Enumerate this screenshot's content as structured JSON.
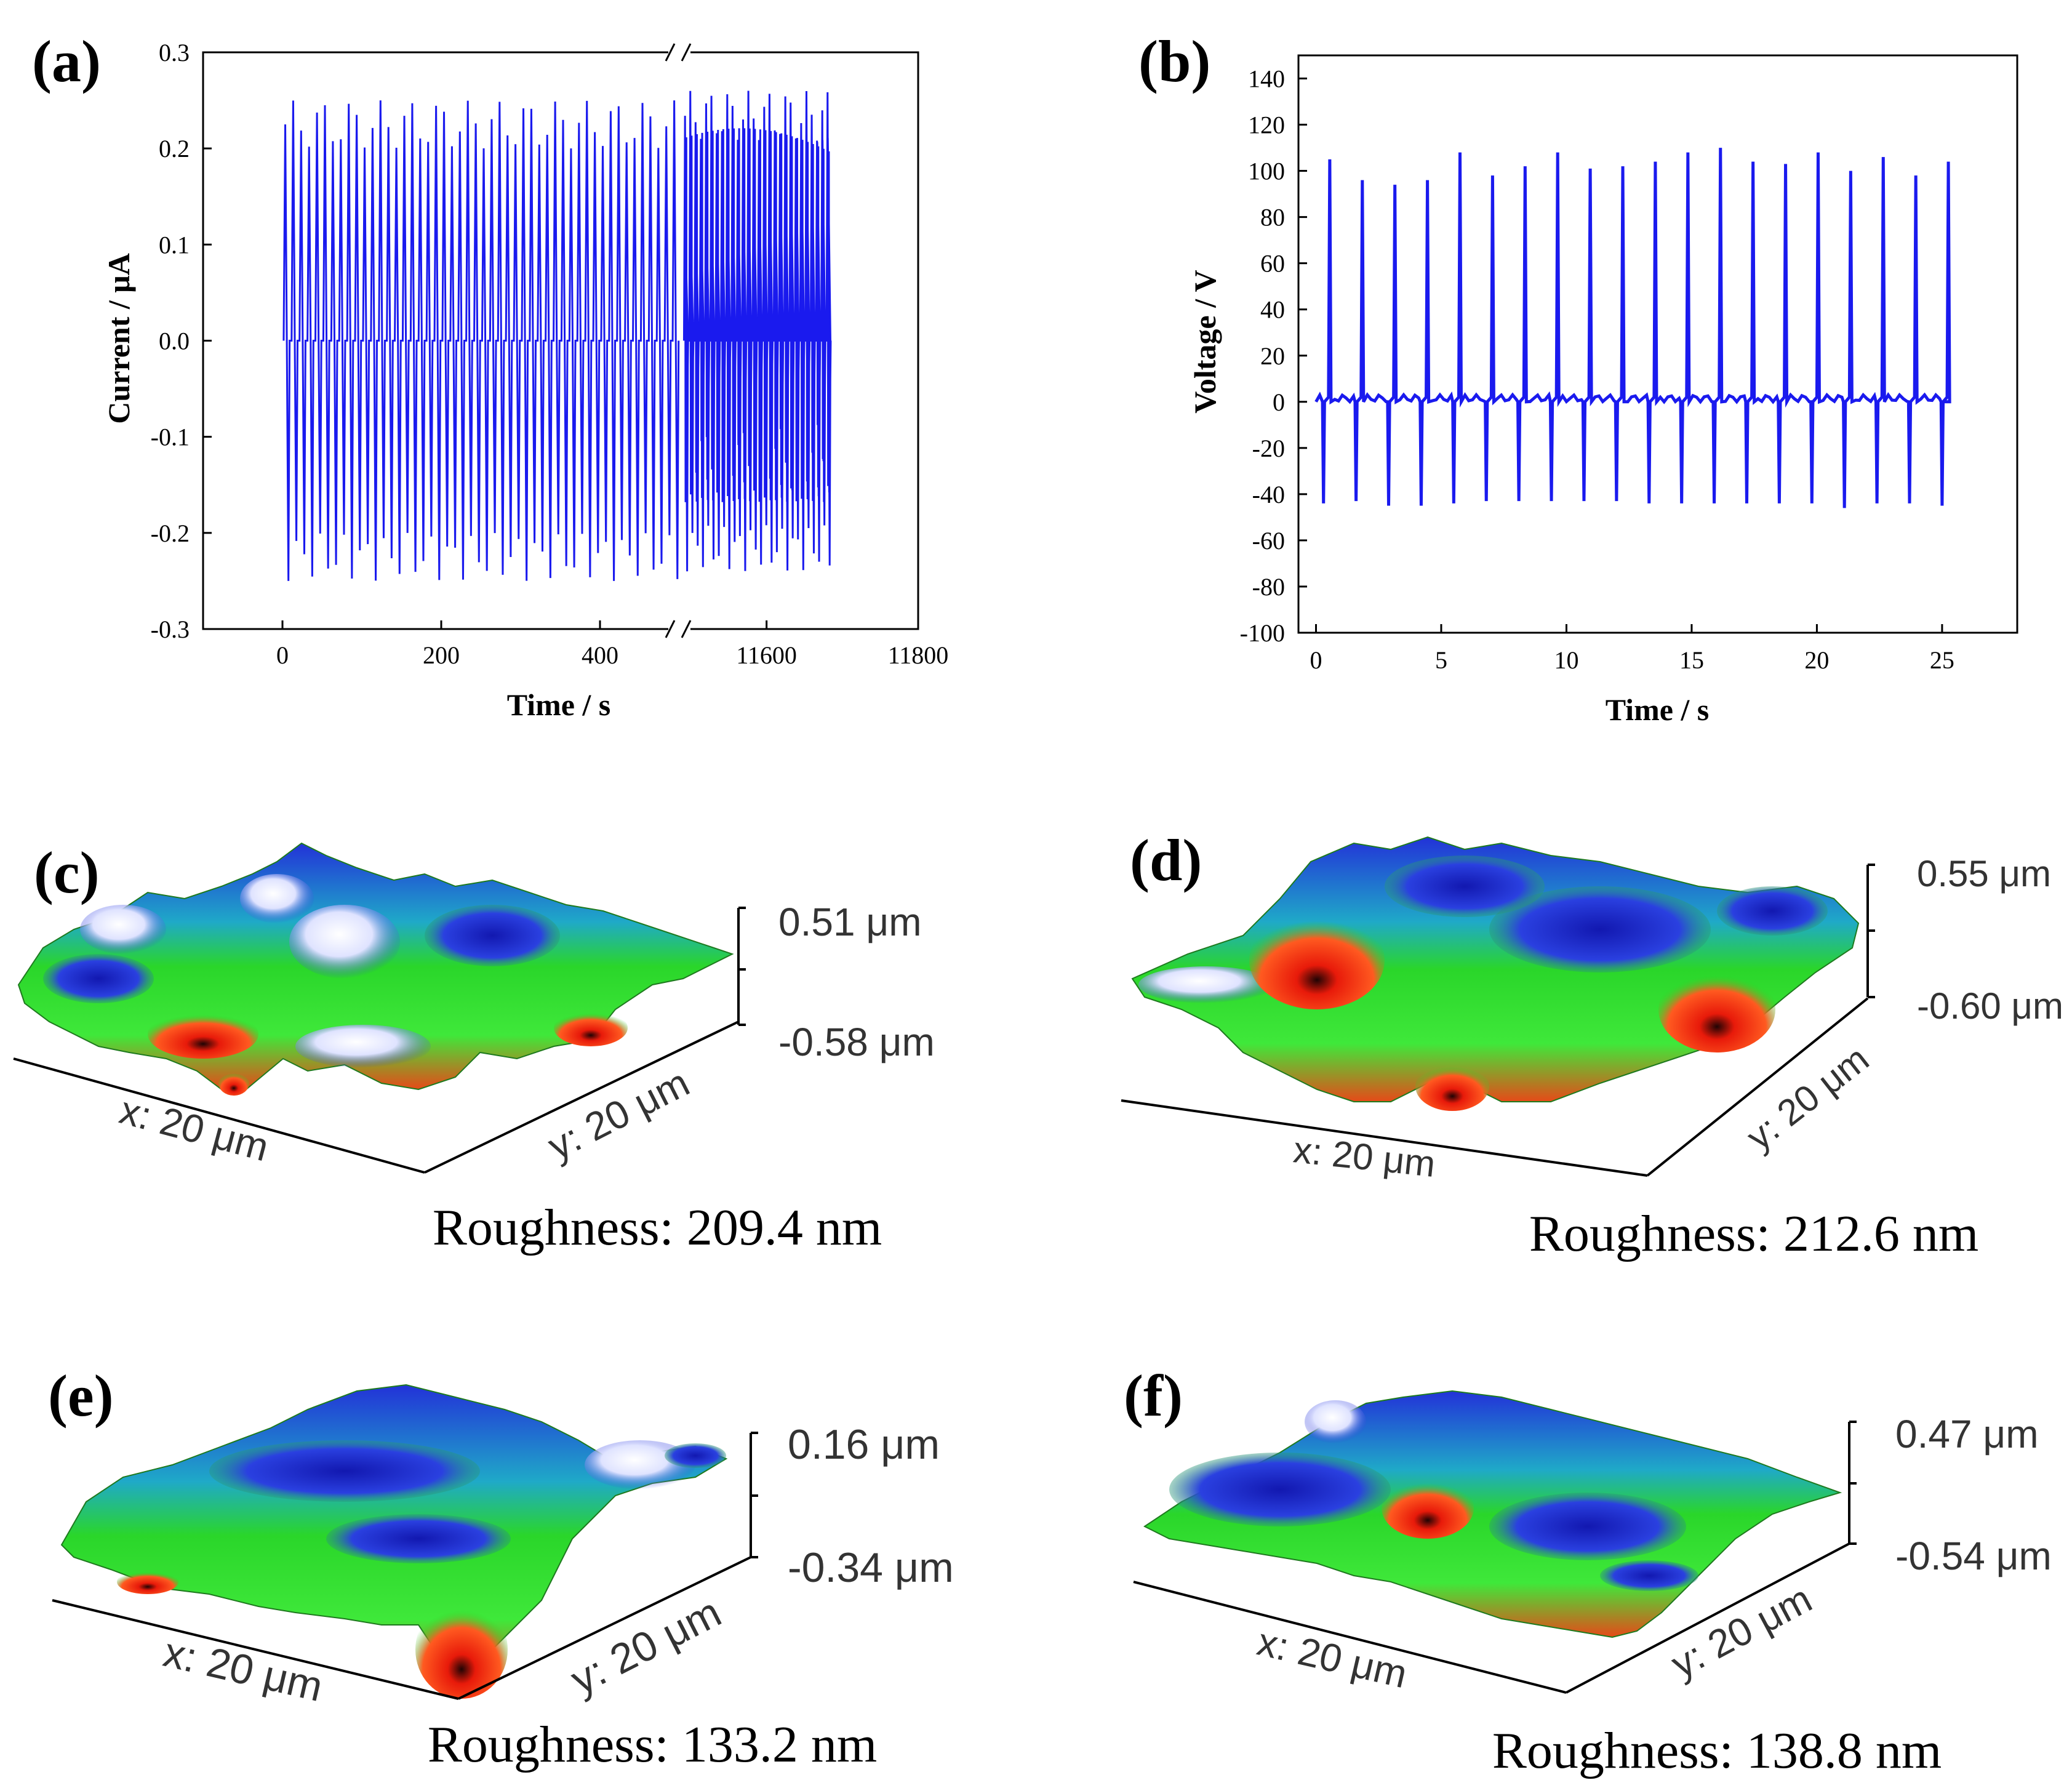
{
  "colors": {
    "trace": "#1a1aee",
    "axis": "#000000",
    "afm_red": "#ee2a10",
    "afm_green": "#2ad62a",
    "afm_blue": "#1a2ad0",
    "afm_white": "#ffffff",
    "afm_black": "#101010"
  },
  "chart_data": [
    {
      "panel": "(a)",
      "type": "line",
      "xlabel": "Time / s",
      "ylabel": "Current / μA",
      "ylim": [
        -0.3,
        0.3
      ],
      "yticks": [
        "0.3",
        "0.2",
        "0.1",
        "0.0",
        "-0.1",
        "-0.2",
        "-0.3"
      ],
      "xticks": [
        "0",
        "200",
        "400",
        "11600",
        "11800"
      ],
      "segments": [
        {
          "xlim": [
            -100,
            500
          ],
          "data_range": [
            0,
            500
          ],
          "cycles": 50,
          "peak_max": 0.25,
          "peak_min": -0.25
        },
        {
          "xlim": [
            11485,
            11800
          ],
          "data_range": [
            11490,
            11685
          ],
          "cycles": 28,
          "peak_max": 0.26,
          "peak_min": -0.24
        }
      ],
      "axis_break": "//"
    },
    {
      "panel": "(b)",
      "type": "line",
      "xlabel": "Time / s",
      "ylabel": "Voltage / V",
      "xlim": [
        -0.7,
        28
      ],
      "ylim": [
        -100,
        150
      ],
      "yticks": [
        "140",
        "120",
        "100",
        "80",
        "60",
        "40",
        "20",
        "0",
        "-20",
        "-40",
        "-60",
        "-80",
        "-100"
      ],
      "xticks": [
        "0",
        "5",
        "10",
        "15",
        "20",
        "25"
      ],
      "spike_times": [
        0.3,
        1.6,
        2.9,
        4.2,
        5.5,
        6.8,
        8.1,
        9.4,
        10.7,
        12.0,
        13.3,
        14.6,
        15.9,
        17.2,
        18.5,
        19.8,
        21.1,
        22.4,
        23.7,
        25.0
      ],
      "positive_peaks": [
        105,
        96,
        94,
        96,
        108,
        98,
        102,
        108,
        101,
        102,
        104,
        108,
        110,
        104,
        103,
        108,
        100,
        106,
        98,
        104
      ],
      "negative_peaks": [
        -44,
        -43,
        -45,
        -45,
        -44,
        -43,
        -43,
        -43,
        -43,
        -43,
        -44,
        -44,
        -44,
        -44,
        -44,
        -44,
        -46,
        -44,
        -44,
        -45
      ]
    }
  ],
  "afm": [
    {
      "panel": "(c)",
      "z_max": "0.51 μm",
      "z_min": "-0.58 μm",
      "x_label": "x: 20 μm",
      "y_label": "y: 20 μm",
      "roughness": "Roughness: 209.4 nm"
    },
    {
      "panel": "(d)",
      "z_max": "0.55 μm",
      "z_min": "-0.60 μm",
      "x_label": "x: 20 μm",
      "y_label": "y: 20 μm",
      "roughness": "Roughness: 212.6 nm"
    },
    {
      "panel": "(e)",
      "z_max": "0.16 μm",
      "z_min": "-0.34 μm",
      "x_label": "x: 20 μm",
      "y_label": "y: 20 μm",
      "roughness": "Roughness: 133.2 nm"
    },
    {
      "panel": "(f)",
      "z_max": "0.47 μm",
      "z_min": "-0.54 μm",
      "x_label": "x: 20 μm",
      "y_label": "y: 20 μm",
      "roughness": "Roughness: 138.8 nm"
    }
  ]
}
